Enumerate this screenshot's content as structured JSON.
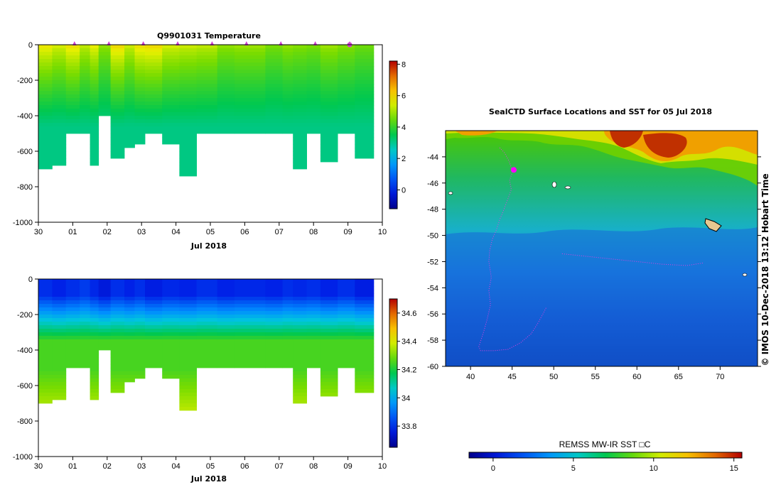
{
  "chart_data": [
    {
      "type": "heatmap",
      "title": "Q9901031  Temperature",
      "xlabel": "Jul 2018",
      "ylabel": "",
      "x_tick_labels": [
        "30",
        "01",
        "02",
        "03",
        "04",
        "05",
        "06",
        "07",
        "08",
        "09",
        "10"
      ],
      "y_tick_labels": [
        "0",
        "-200",
        "-400",
        "-600",
        "-800",
        "-1000"
      ],
      "ylim": [
        -1000,
        0
      ],
      "colorbar": {
        "min": -1.2,
        "max": 8.2,
        "tick_labels": [
          "8",
          "6",
          "4",
          "2",
          "0"
        ]
      },
      "profiles": [
        {
          "day": 0.0,
          "depth": 700,
          "surface": 5.7
        },
        {
          "day": 0.4,
          "depth": 670,
          "surface": 5.4
        },
        {
          "day": 0.8,
          "depth": 500,
          "surface": 5.8
        },
        {
          "day": 1.2,
          "depth": 500,
          "surface": 5.2
        },
        {
          "day": 1.5,
          "depth": 680,
          "surface": 5.6
        },
        {
          "day": 1.75,
          "depth": 400,
          "surface": 4.8
        },
        {
          "day": 2.1,
          "depth": 625,
          "surface": 5.9
        },
        {
          "day": 2.5,
          "depth": 565,
          "surface": 5.3
        },
        {
          "day": 2.8,
          "depth": 545,
          "surface": 5.8
        },
        {
          "day": 3.1,
          "depth": 500,
          "surface": 5.9
        },
        {
          "day": 3.6,
          "depth": 545,
          "surface": 5.4
        },
        {
          "day": 4.1,
          "depth": 740,
          "surface": 5.3
        },
        {
          "day": 4.6,
          "depth": 500,
          "surface": 5.2
        },
        {
          "day": 5.2,
          "depth": 500,
          "surface": 4.8
        },
        {
          "day": 5.7,
          "depth": 500,
          "surface": 4.9
        },
        {
          "day": 6.6,
          "depth": 500,
          "surface": 4.6
        },
        {
          "day": 7.1,
          "depth": 500,
          "surface": 4.8
        },
        {
          "day": 7.4,
          "depth": 700,
          "surface": 4.7
        },
        {
          "day": 7.8,
          "depth": 500,
          "surface": 4.6
        },
        {
          "day": 8.2,
          "depth": 645,
          "surface": 4.9
        },
        {
          "day": 8.7,
          "depth": 500,
          "surface": 4.7
        },
        {
          "day": 9.2,
          "depth": 635,
          "surface": 4.5
        }
      ],
      "markers": [
        1.0,
        2.0,
        3.0,
        4.0,
        5.0,
        6.0,
        7.0,
        8.0,
        9.0
      ]
    },
    {
      "type": "heatmap",
      "title": "",
      "xlabel": "Jul 2018",
      "ylabel": "",
      "x_tick_labels": [
        "30",
        "01",
        "02",
        "03",
        "04",
        "05",
        "06",
        "07",
        "08",
        "09",
        "10"
      ],
      "y_tick_labels": [
        "0",
        "-200",
        "-400",
        "-600",
        "-800",
        "-1000"
      ],
      "ylim": [
        -1000,
        0
      ],
      "colorbar": {
        "min": 33.65,
        "max": 34.7,
        "tick_labels": [
          "34.6",
          "34.4",
          "34.2",
          "34",
          "33.8"
        ]
      },
      "profiles": [
        {
          "day": 0.0,
          "depth": 700,
          "surface": 33.8
        },
        {
          "day": 0.4,
          "depth": 670,
          "surface": 33.78
        },
        {
          "day": 0.8,
          "depth": 500,
          "surface": 33.8
        },
        {
          "day": 1.2,
          "depth": 500,
          "surface": 33.82
        },
        {
          "day": 1.5,
          "depth": 680,
          "surface": 33.79
        },
        {
          "day": 1.75,
          "depth": 400,
          "surface": 33.76
        },
        {
          "day": 2.1,
          "depth": 625,
          "surface": 33.8
        },
        {
          "day": 2.5,
          "depth": 565,
          "surface": 33.78
        },
        {
          "day": 2.8,
          "depth": 545,
          "surface": 33.8
        },
        {
          "day": 3.1,
          "depth": 500,
          "surface": 33.77
        },
        {
          "day": 3.6,
          "depth": 545,
          "surface": 33.79
        },
        {
          "day": 4.1,
          "depth": 740,
          "surface": 33.78
        },
        {
          "day": 4.6,
          "depth": 500,
          "surface": 33.8
        },
        {
          "day": 5.2,
          "depth": 500,
          "surface": 33.78
        },
        {
          "day": 5.7,
          "depth": 500,
          "surface": 33.79
        },
        {
          "day": 6.6,
          "depth": 500,
          "surface": 33.78
        },
        {
          "day": 7.1,
          "depth": 500,
          "surface": 33.8
        },
        {
          "day": 7.4,
          "depth": 700,
          "surface": 33.79
        },
        {
          "day": 7.8,
          "depth": 500,
          "surface": 33.8
        },
        {
          "day": 8.2,
          "depth": 645,
          "surface": 33.78
        },
        {
          "day": 8.7,
          "depth": 500,
          "surface": 33.8
        },
        {
          "day": 9.2,
          "depth": 635,
          "surface": 33.77
        }
      ]
    },
    {
      "type": "heatmap",
      "title": "SealCTD Surface Locations and SST for 05 Jul 2018",
      "xlabel": "",
      "ylabel": "",
      "xlim": [
        37,
        74.5
      ],
      "ylim": [
        -60,
        -42
      ],
      "x_tick_labels": [
        "40",
        "45",
        "50",
        "55",
        "60",
        "65",
        "70"
      ],
      "y_tick_labels": [
        "-44",
        "-46",
        "-48",
        "-50",
        "-52",
        "-54",
        "-56",
        "-58",
        "-60"
      ],
      "colorbar": {
        "min": -1.5,
        "max": 15.5,
        "tick_labels": [
          "0",
          "5",
          "10",
          "15"
        ],
        "label": "REMSS MW-IR SST □C"
      },
      "side_label": "© IMOS 10-Dec-2018 13:12 Hobart Time",
      "track": [
        [
          43.5,
          -43.3
        ],
        [
          44.1,
          -43.7
        ],
        [
          44.6,
          -44.3
        ],
        [
          45.0,
          -45.0
        ],
        [
          45.0,
          -45.2
        ],
        [
          44.7,
          -45.8
        ],
        [
          44.9,
          -46.5
        ],
        [
          44.5,
          -47.2
        ],
        [
          43.9,
          -48.2
        ],
        [
          43.5,
          -48.8
        ],
        [
          43.1,
          -49.6
        ],
        [
          42.6,
          -50.3
        ],
        [
          42.3,
          -51.2
        ],
        [
          42.2,
          -52.0
        ],
        [
          42.5,
          -53.2
        ],
        [
          42.2,
          -54.2
        ],
        [
          42.4,
          -55.3
        ],
        [
          42.0,
          -56.4
        ],
        [
          41.6,
          -57.3
        ],
        [
          41.0,
          -58.5
        ],
        [
          41.2,
          -58.8
        ],
        [
          42.8,
          -58.8
        ],
        [
          44.5,
          -58.7
        ],
        [
          46.0,
          -58.2
        ],
        [
          47.3,
          -57.5
        ],
        [
          48.0,
          -56.8
        ],
        [
          48.7,
          -56.0
        ],
        [
          49.1,
          -55.5
        ]
      ],
      "track2": [
        [
          51.0,
          -51.4
        ],
        [
          54.0,
          -51.6
        ],
        [
          57.0,
          -51.8
        ],
        [
          60.0,
          -52.0
        ],
        [
          63.0,
          -52.2
        ],
        [
          66.0,
          -52.3
        ],
        [
          68.0,
          -52.1
        ]
      ],
      "current_location": [
        45.2,
        -45.0
      ]
    }
  ]
}
